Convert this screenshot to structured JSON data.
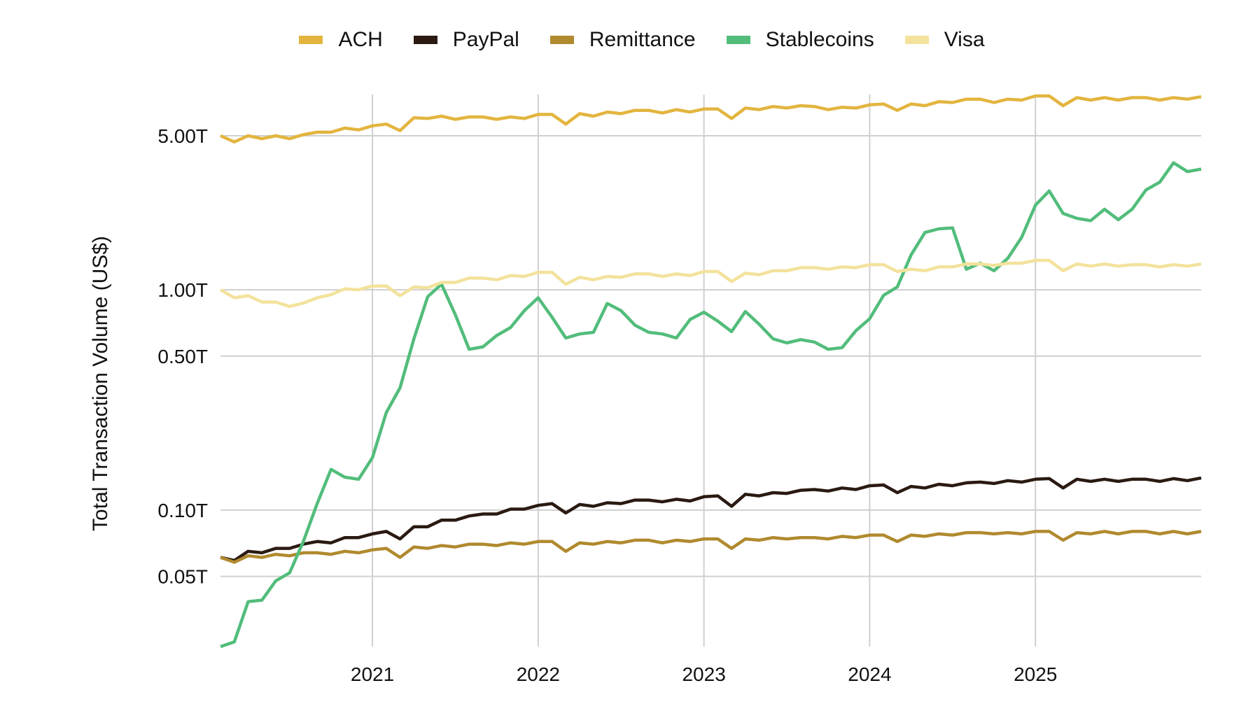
{
  "chart_data": {
    "type": "line",
    "title": "",
    "xlabel": "",
    "ylabel": "Total Transaction Volume (US$)",
    "yscale": "log",
    "ylim": [
      0.024,
      7.7
    ],
    "xlim": [
      "2020-02",
      "2026-01"
    ],
    "grid": true,
    "legend_position": "top",
    "y_ticks": [
      {
        "value": 0.05,
        "label": "0.05T"
      },
      {
        "value": 0.1,
        "label": "0.10T"
      },
      {
        "value": 0.5,
        "label": "0.50T"
      },
      {
        "value": 1,
        "label": "1.00T"
      },
      {
        "value": 5,
        "label": "5.00T"
      }
    ],
    "x_ticks": [
      {
        "value": "2021-01",
        "label": "2021"
      },
      {
        "value": "2022-01",
        "label": "2022"
      },
      {
        "value": "2023-01",
        "label": "2023"
      },
      {
        "value": "2024-01",
        "label": "2024"
      },
      {
        "value": "2025-01",
        "label": "2025"
      }
    ],
    "x": [
      "2020-02",
      "2020-03",
      "2020-04",
      "2020-05",
      "2020-06",
      "2020-07",
      "2020-08",
      "2020-09",
      "2020-10",
      "2020-11",
      "2020-12",
      "2021-01",
      "2021-02",
      "2021-03",
      "2021-04",
      "2021-05",
      "2021-06",
      "2021-07",
      "2021-08",
      "2021-09",
      "2021-10",
      "2021-11",
      "2021-12",
      "2022-01",
      "2022-02",
      "2022-03",
      "2022-04",
      "2022-05",
      "2022-06",
      "2022-07",
      "2022-08",
      "2022-09",
      "2022-10",
      "2022-11",
      "2022-12",
      "2023-01",
      "2023-02",
      "2023-03",
      "2023-04",
      "2023-05",
      "2023-06",
      "2023-07",
      "2023-08",
      "2023-09",
      "2023-10",
      "2023-11",
      "2023-12",
      "2024-01",
      "2024-02",
      "2024-03",
      "2024-04",
      "2024-05",
      "2024-06",
      "2024-07",
      "2024-08",
      "2024-09",
      "2024-10",
      "2024-11",
      "2024-12",
      "2025-01",
      "2025-02",
      "2025-03",
      "2025-04",
      "2025-05",
      "2025-06",
      "2025-07",
      "2025-08",
      "2025-09",
      "2025-10",
      "2025-11",
      "2025-12",
      "2026-01"
    ],
    "series": [
      {
        "name": "ACH",
        "color": "#e3b53f",
        "values": [
          5.0,
          4.69,
          5.0,
          4.85,
          5.0,
          4.85,
          5.06,
          5.19,
          5.19,
          5.42,
          5.32,
          5.55,
          5.65,
          5.28,
          6.04,
          5.99,
          6.14,
          5.94,
          6.09,
          6.09,
          5.94,
          6.09,
          5.99,
          6.25,
          6.25,
          5.65,
          6.3,
          6.14,
          6.41,
          6.3,
          6.52,
          6.52,
          6.35,
          6.57,
          6.41,
          6.62,
          6.62,
          5.99,
          6.68,
          6.57,
          6.79,
          6.68,
          6.85,
          6.79,
          6.57,
          6.74,
          6.68,
          6.91,
          6.97,
          6.52,
          6.97,
          6.85,
          7.14,
          7.08,
          7.33,
          7.33,
          7.08,
          7.33,
          7.26,
          7.58,
          7.58,
          6.85,
          7.45,
          7.26,
          7.45,
          7.26,
          7.45,
          7.45,
          7.26,
          7.45,
          7.33,
          7.52
        ]
      },
      {
        "name": "PayPal",
        "color": "#2a1a12",
        "values": [
          0.061,
          0.059,
          0.065,
          0.064,
          0.067,
          0.067,
          0.07,
          0.072,
          0.071,
          0.075,
          0.075,
          0.078,
          0.08,
          0.074,
          0.084,
          0.084,
          0.09,
          0.09,
          0.094,
          0.096,
          0.096,
          0.101,
          0.101,
          0.105,
          0.107,
          0.097,
          0.106,
          0.104,
          0.108,
          0.107,
          0.111,
          0.111,
          0.109,
          0.112,
          0.11,
          0.115,
          0.116,
          0.104,
          0.118,
          0.116,
          0.12,
          0.119,
          0.123,
          0.124,
          0.122,
          0.126,
          0.124,
          0.129,
          0.13,
          0.12,
          0.128,
          0.126,
          0.131,
          0.129,
          0.133,
          0.134,
          0.132,
          0.136,
          0.134,
          0.138,
          0.139,
          0.126,
          0.138,
          0.135,
          0.138,
          0.135,
          0.138,
          0.138,
          0.135,
          0.139,
          0.136,
          0.14
        ]
      },
      {
        "name": "Remittance",
        "color": "#b08a2e",
        "values": [
          0.061,
          0.058,
          0.062,
          0.061,
          0.063,
          0.062,
          0.064,
          0.064,
          0.063,
          0.065,
          0.064,
          0.066,
          0.067,
          0.061,
          0.068,
          0.067,
          0.069,
          0.068,
          0.07,
          0.07,
          0.069,
          0.071,
          0.07,
          0.072,
          0.072,
          0.065,
          0.071,
          0.07,
          0.072,
          0.071,
          0.073,
          0.073,
          0.071,
          0.073,
          0.072,
          0.074,
          0.074,
          0.067,
          0.074,
          0.073,
          0.075,
          0.074,
          0.075,
          0.075,
          0.074,
          0.076,
          0.075,
          0.077,
          0.077,
          0.072,
          0.077,
          0.076,
          0.078,
          0.077,
          0.079,
          0.079,
          0.078,
          0.079,
          0.078,
          0.08,
          0.08,
          0.073,
          0.079,
          0.078,
          0.08,
          0.078,
          0.08,
          0.08,
          0.078,
          0.08,
          0.078,
          0.08
        ]
      },
      {
        "name": "Stablecoins",
        "color": "#52bd7b",
        "values": [
          0.024,
          0.0252,
          0.0384,
          0.039,
          0.0477,
          0.0519,
          0.0721,
          0.107,
          0.153,
          0.141,
          0.138,
          0.173,
          0.277,
          0.359,
          0.599,
          0.93,
          1.06,
          0.77,
          0.537,
          0.551,
          0.62,
          0.674,
          0.804,
          0.92,
          0.751,
          0.604,
          0.63,
          0.641,
          0.867,
          0.804,
          0.691,
          0.641,
          0.63,
          0.604,
          0.733,
          0.791,
          0.721,
          0.646,
          0.797,
          0.697,
          0.599,
          0.574,
          0.594,
          0.579,
          0.537,
          0.546,
          0.652,
          0.739,
          0.943,
          1.03,
          1.44,
          1.82,
          1.89,
          1.91,
          1.24,
          1.32,
          1.22,
          1.39,
          1.73,
          2.42,
          2.81,
          2.22,
          2.11,
          2.06,
          2.32,
          2.08,
          2.32,
          2.84,
          3.08,
          3.77,
          3.44,
          3.53
        ]
      },
      {
        "name": "Visa",
        "color": "#f3e29c",
        "values": [
          1.0,
          0.92,
          0.94,
          0.88,
          0.88,
          0.84,
          0.87,
          0.92,
          0.95,
          1.01,
          1.0,
          1.04,
          1.04,
          0.94,
          1.03,
          1.02,
          1.08,
          1.08,
          1.13,
          1.13,
          1.11,
          1.16,
          1.15,
          1.2,
          1.2,
          1.06,
          1.14,
          1.11,
          1.15,
          1.14,
          1.18,
          1.18,
          1.15,
          1.18,
          1.16,
          1.21,
          1.21,
          1.09,
          1.19,
          1.17,
          1.22,
          1.22,
          1.26,
          1.26,
          1.24,
          1.27,
          1.26,
          1.3,
          1.3,
          1.21,
          1.24,
          1.22,
          1.27,
          1.27,
          1.31,
          1.31,
          1.29,
          1.32,
          1.32,
          1.36,
          1.36,
          1.22,
          1.31,
          1.28,
          1.31,
          1.28,
          1.3,
          1.3,
          1.27,
          1.3,
          1.28,
          1.31
        ]
      }
    ]
  }
}
